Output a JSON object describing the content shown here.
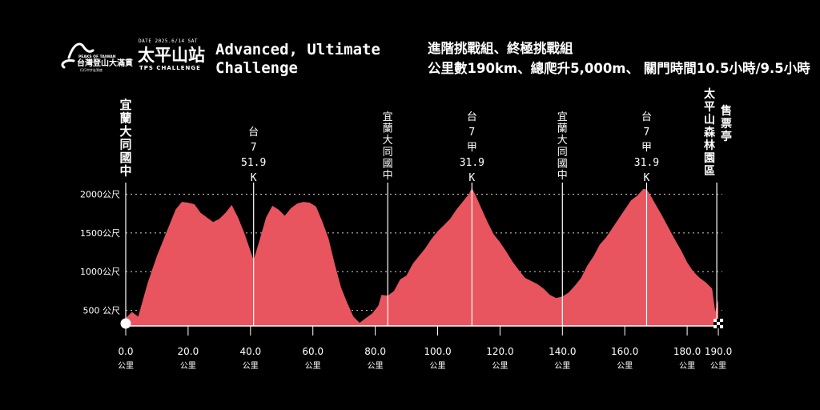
{
  "logo": {
    "date_text": "DATE 2025.6/14 SAT",
    "name_en": "PEAKS OF TAIWAN",
    "name_zh": "台灣登山大滿貫",
    "event_title": "太平山站",
    "event_sub": "TPS CHALLENGE"
  },
  "heading": {
    "title": "Advanced, Ultimate Challenge",
    "line1": "進階挑戰組、終極挑戰組",
    "line2": "公里數190km、總爬升5,000m、 關門時間10.5小時/9.5小時"
  },
  "colors": {
    "area": "#e8555f",
    "background": "#000000",
    "lines": "#ffffff"
  },
  "chart_data": {
    "type": "area",
    "title": "",
    "xlabel": "",
    "ylabel": "",
    "xlim": [
      0,
      190
    ],
    "ylim": [
      300,
      2100
    ],
    "x_tick_values": [
      0,
      20,
      40,
      60,
      80,
      100,
      120,
      140,
      160,
      180,
      190
    ],
    "x_tick_labels": [
      "0.0",
      "20.0",
      "40.0",
      "60.0",
      "80.0",
      "100.0",
      "120.0",
      "140.0",
      "160.0",
      "180.0",
      "190.0"
    ],
    "x_tick_unit": "公里",
    "y_tick_values": [
      500,
      1000,
      1500,
      2000
    ],
    "y_tick_labels": [
      "500 公尺",
      "1000公尺",
      "1500公尺",
      "2000公尺"
    ],
    "grid": "horizontal dotted",
    "markers": [
      {
        "x": 0,
        "label": "宜蘭大同國中",
        "style": "bold"
      },
      {
        "x": 41,
        "label": "台7 51.9 K",
        "lines": [
          "台",
          "7",
          "51.9",
          "K"
        ]
      },
      {
        "x": 84,
        "label": "宜蘭大同國中",
        "style": "normal"
      },
      {
        "x": 111,
        "label": "台7甲 31.9 K",
        "lines": [
          "台",
          "7",
          "甲",
          "31.9",
          "K"
        ]
      },
      {
        "x": 140,
        "label": "宜蘭大同國中",
        "style": "normal"
      },
      {
        "x": 167,
        "label": "台7甲 31.9 K",
        "lines": [
          "台",
          "7",
          "甲",
          "31.9",
          "K"
        ]
      },
      {
        "x": 189.5,
        "label": "售票亭太平山森林園區",
        "style": "bold-2col"
      }
    ],
    "series": [
      {
        "values_x": [
          0,
          2,
          4,
          7,
          10,
          13,
          16,
          18,
          20,
          22,
          24,
          26,
          28,
          30,
          32,
          34,
          36,
          38,
          41,
          43,
          45,
          47,
          49,
          51,
          53,
          55,
          57,
          59,
          61,
          63,
          65,
          67,
          69,
          71,
          73,
          75,
          77,
          79,
          81,
          82,
          84,
          86,
          88,
          90,
          92,
          94,
          96,
          98,
          100,
          102,
          104,
          106,
          108,
          110,
          111,
          112,
          114,
          116,
          118,
          120,
          122,
          124,
          126,
          128,
          130,
          132,
          134,
          136,
          138,
          140,
          142,
          144,
          146,
          148,
          150,
          152,
          154,
          156,
          158,
          160,
          162,
          164,
          166,
          167,
          168,
          170,
          172,
          174,
          176,
          178,
          180,
          182,
          184,
          186,
          188,
          189,
          190
        ],
        "values_y": [
          400,
          480,
          420,
          850,
          1200,
          1500,
          1800,
          1900,
          1890,
          1870,
          1760,
          1700,
          1640,
          1680,
          1760,
          1860,
          1700,
          1500,
          1150,
          1420,
          1700,
          1850,
          1800,
          1720,
          1820,
          1880,
          1900,
          1890,
          1840,
          1650,
          1430,
          1100,
          800,
          600,
          420,
          340,
          400,
          460,
          560,
          700,
          690,
          750,
          900,
          950,
          1100,
          1200,
          1300,
          1420,
          1520,
          1600,
          1680,
          1800,
          1900,
          2000,
          2080,
          2000,
          1820,
          1640,
          1480,
          1380,
          1260,
          1130,
          1020,
          920,
          880,
          840,
          780,
          700,
          660,
          680,
          730,
          820,
          920,
          1080,
          1200,
          1350,
          1440,
          1560,
          1680,
          1800,
          1920,
          1980,
          2070,
          2060,
          2000,
          1860,
          1720,
          1570,
          1420,
          1280,
          1120,
          1000,
          920,
          860,
          780,
          480,
          640
        ]
      }
    ]
  }
}
